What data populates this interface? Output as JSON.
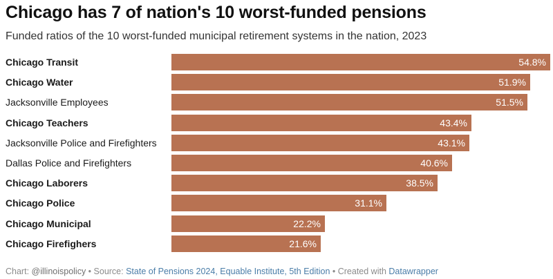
{
  "header": {
    "title": "Chicago has 7 of nation's 10 worst-funded pensions",
    "subtitle": "Funded ratios of the 10 worst-funded municipal retirement systems in the nation, 2023"
  },
  "footer": {
    "chart_prefix": "Chart: ",
    "chart_author": "@illinoispolicy",
    "sep1": " • Source: ",
    "source": "State of Pensions 2024, Equable Institute, 5th Edition",
    "sep2": " • Created with ",
    "tool": "Datawrapper"
  },
  "colors": {
    "bar": "#b87252"
  },
  "chart_data": {
    "type": "bar",
    "orientation": "horizontal",
    "title": "Chicago has 7 of nation's 10 worst-funded pensions",
    "subtitle": "Funded ratios of the 10 worst-funded municipal retirement systems in the nation, 2023",
    "xlim": [
      0,
      54.8
    ],
    "grid": false,
    "categories": [
      "Chicago Transit",
      "Chicago Water",
      "Jacksonville Employees",
      "Chicago Teachers",
      "Jacksonville Police and Firefighters",
      "Dallas Police and Firefighters",
      "Chicago Laborers",
      "Chicago Police",
      "Chicago Municipal",
      "Chicago Firefighers"
    ],
    "values": [
      54.8,
      51.9,
      51.5,
      43.4,
      43.1,
      40.6,
      38.5,
      31.1,
      22.2,
      21.6
    ],
    "value_labels": [
      "54.8%",
      "51.9%",
      "51.5%",
      "43.4%",
      "43.1%",
      "40.6%",
      "38.5%",
      "31.1%",
      "22.2%",
      "21.6%"
    ],
    "bold_labels": [
      true,
      true,
      false,
      true,
      false,
      false,
      true,
      true,
      true,
      true
    ]
  }
}
